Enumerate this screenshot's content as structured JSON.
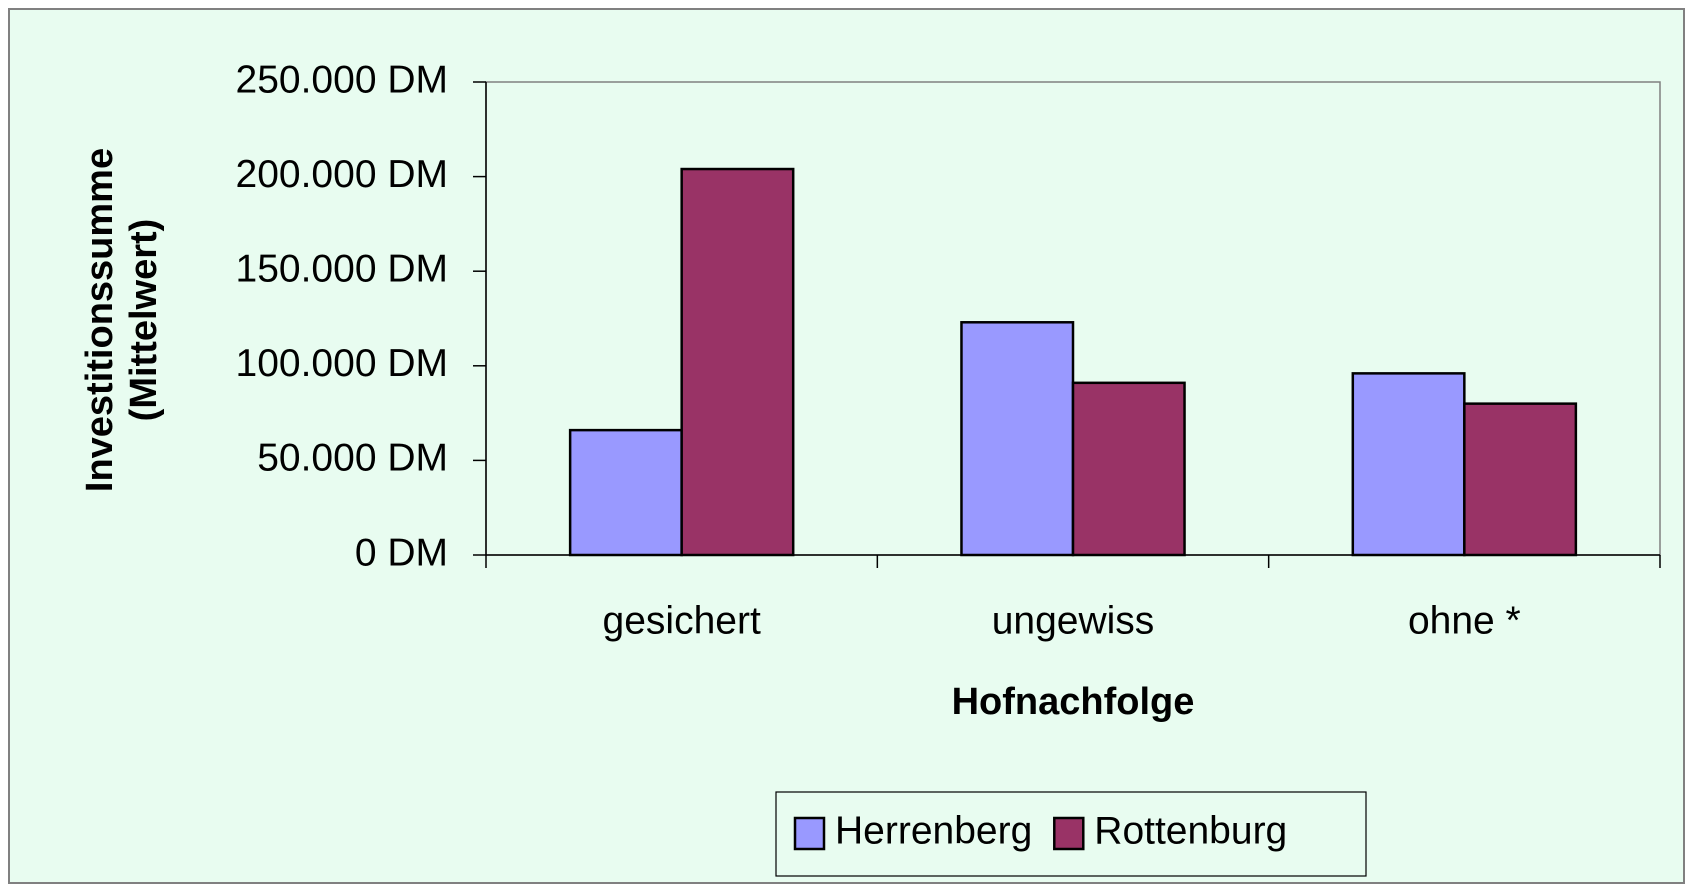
{
  "chart_data": {
    "type": "bar",
    "categories": [
      "gesichert",
      "ungewiss",
      "ohne *"
    ],
    "series": [
      {
        "name": "Herrenberg",
        "color": "#9999ff",
        "values": [
          66000,
          123000,
          96000
        ]
      },
      {
        "name": "Rottenburg",
        "color": "#993366",
        "values": [
          204000,
          91000,
          80000
        ]
      }
    ],
    "ylim": [
      0,
      250000
    ],
    "yticks": [
      {
        "value": 0,
        "label": "0 DM"
      },
      {
        "value": 50000,
        "label": "50.000 DM"
      },
      {
        "value": 100000,
        "label": "100.000 DM"
      },
      {
        "value": 150000,
        "label": "150.000 DM"
      },
      {
        "value": 200000,
        "label": "200.000 DM"
      },
      {
        "value": 250000,
        "label": "250.000 DM"
      }
    ],
    "y_label": [
      "Investitionssumme",
      "(Mittelwert)"
    ],
    "x_label": "Hofnachfolge",
    "grid": false,
    "legend": "bottom"
  }
}
